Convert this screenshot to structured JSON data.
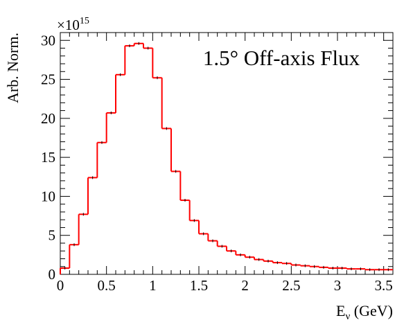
{
  "chart_data": {
    "type": "histogram",
    "title": "1.5° Off-axis Flux",
    "xlabel_main": "E",
    "xlabel_sub": "ν",
    "xlabel_unit": " (GeV)",
    "ylabel": "Arb. Norm.",
    "exponent_base": "×10",
    "exponent_power": "15",
    "xlim": [
      0,
      3.6
    ],
    "ylim": [
      0,
      31
    ],
    "bin_width": 0.1,
    "x_ticks": [
      "0",
      "0.5",
      "1",
      "1.5",
      "2",
      "2.5",
      "3",
      "3.5"
    ],
    "x_tick_values": [
      0,
      0.5,
      1,
      1.5,
      2,
      2.5,
      3,
      3.5
    ],
    "y_ticks": [
      "0",
      "5",
      "10",
      "15",
      "20",
      "25",
      "30"
    ],
    "y_tick_values": [
      0,
      5,
      10,
      15,
      20,
      25,
      30
    ],
    "bin_low_edges": [
      0.0,
      0.1,
      0.2,
      0.3,
      0.4,
      0.5,
      0.6,
      0.7,
      0.8,
      0.9,
      1.0,
      1.1,
      1.2,
      1.3,
      1.4,
      1.5,
      1.6,
      1.7,
      1.8,
      1.9,
      2.0,
      2.1,
      2.2,
      2.3,
      2.4,
      2.5,
      2.6,
      2.7,
      2.8,
      2.9,
      3.0,
      3.1,
      3.2,
      3.3,
      3.4,
      3.5
    ],
    "values": [
      0.8,
      3.8,
      7.7,
      12.4,
      16.9,
      20.7,
      25.6,
      29.3,
      29.6,
      29.0,
      25.2,
      18.7,
      13.2,
      9.5,
      6.9,
      5.2,
      4.3,
      3.6,
      3.0,
      2.5,
      2.2,
      1.9,
      1.7,
      1.5,
      1.4,
      1.2,
      1.1,
      1.0,
      0.9,
      0.8,
      0.8,
      0.7,
      0.7,
      0.6,
      0.6,
      0.6
    ],
    "color": "#ff0000"
  }
}
